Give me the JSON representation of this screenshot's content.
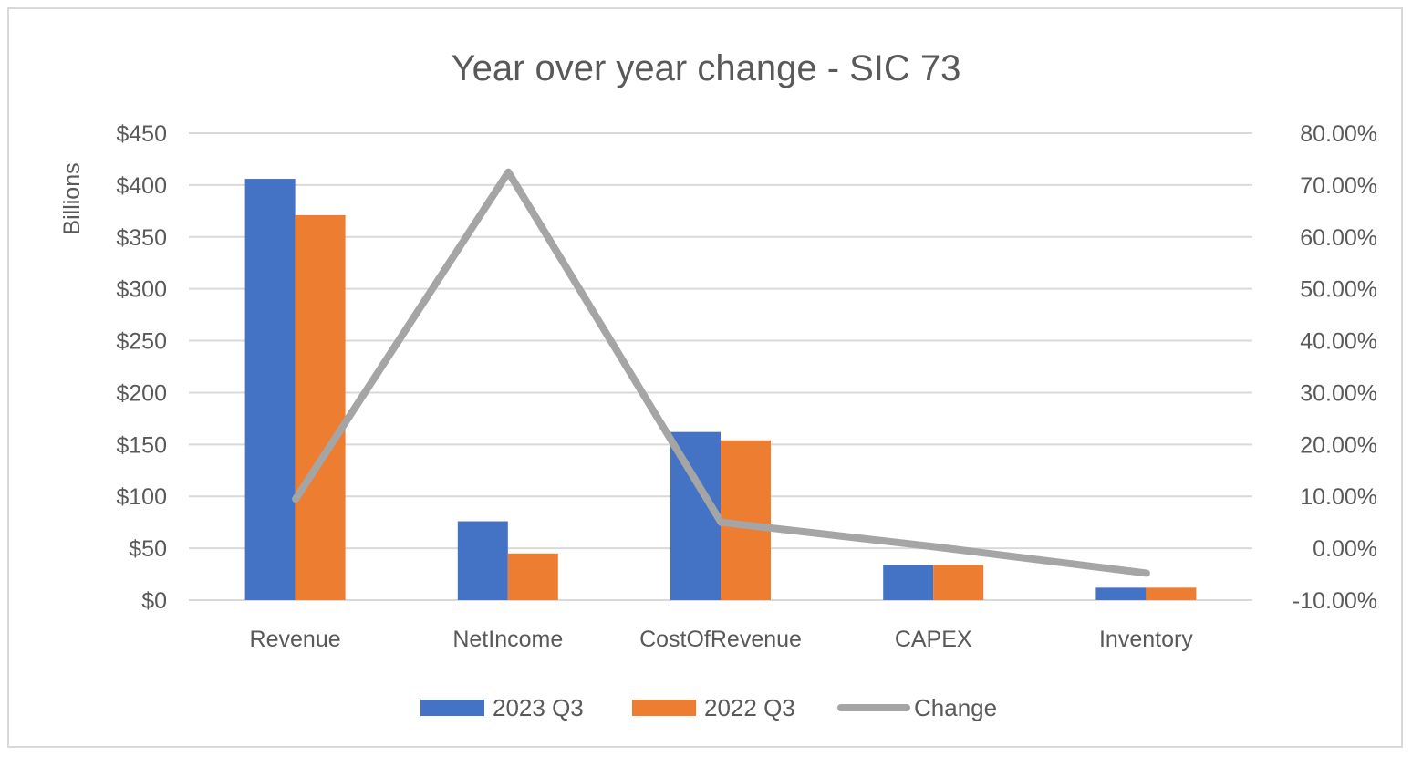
{
  "chart_data": {
    "type": "bar",
    "title": "Year over year change - SIC 73",
    "ylabel": "Billions",
    "categories": [
      "Revenue",
      "NetIncome",
      "CostOfRevenue",
      "CAPEX",
      "Inventory"
    ],
    "series": [
      {
        "name": "2023 Q3",
        "kind": "bar",
        "axis": "left",
        "color": "#4472c4",
        "values": [
          406,
          76,
          162,
          34,
          12
        ]
      },
      {
        "name": "2022 Q3",
        "kind": "bar",
        "axis": "left",
        "color": "#ed7d31",
        "values": [
          371,
          45,
          154,
          34,
          12
        ]
      },
      {
        "name": "Change",
        "kind": "line",
        "axis": "right",
        "color": "#a5a5a5",
        "values": [
          9.5,
          72.5,
          5.0,
          0.3,
          -4.8
        ]
      }
    ],
    "ylim": [
      0,
      450
    ],
    "yticks": [
      "$0",
      "$50",
      "$100",
      "$150",
      "$200",
      "$250",
      "$300",
      "$350",
      "$400",
      "$450"
    ],
    "y2lim": [
      -10,
      80
    ],
    "y2ticks": [
      "-10.00%",
      "0.00%",
      "10.00%",
      "20.00%",
      "30.00%",
      "40.00%",
      "50.00%",
      "60.00%",
      "70.00%",
      "80.00%"
    ],
    "grid": true,
    "legend": "bottom",
    "colors": {
      "gridline": "#d9d9d9",
      "text": "#595959"
    }
  }
}
